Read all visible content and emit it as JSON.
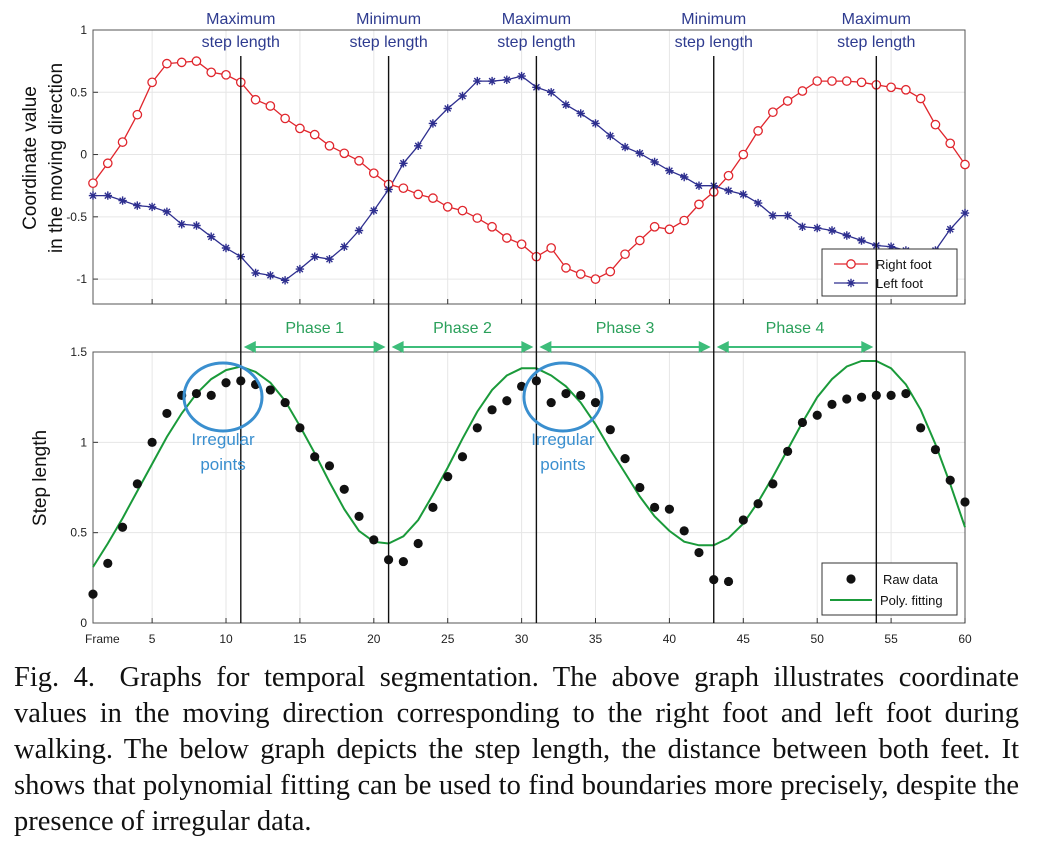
{
  "colors": {
    "right_foot": "#e0262d",
    "left_foot": "#2e2f8f",
    "raw_data": "#111111",
    "poly_fit": "#1a9a3a",
    "phase_arrow": "#3dbd7a",
    "phase_text": "#2aa05a",
    "annotation_text": "#2e3b8f",
    "irregular_circle": "#3a8fcf"
  },
  "chart_data": [
    {
      "type": "line",
      "panel": "top",
      "ylabel_line1": "Coordinate value",
      "ylabel_line2": "in the moving direction",
      "xlim": [
        1,
        60
      ],
      "ylim": [
        -1.2,
        1
      ],
      "yticks": [
        1,
        0.5,
        0,
        -0.5,
        -1
      ],
      "ytick_labels": [
        "1",
        "0.5",
        "0",
        "-0.5",
        "-1"
      ],
      "grid": true,
      "legend_position": "bottom-right",
      "series": [
        {
          "name": "Right foot",
          "marker": "circle",
          "x": [
            1,
            2,
            3,
            4,
            5,
            6,
            7,
            8,
            9,
            10,
            11,
            12,
            13,
            14,
            15,
            16,
            17,
            18,
            19,
            20,
            21,
            22,
            23,
            24,
            25,
            26,
            27,
            28,
            29,
            30,
            31,
            32,
            33,
            34,
            35,
            36,
            37,
            38,
            39,
            40,
            41,
            42,
            43,
            44,
            45,
            46,
            47,
            48,
            49,
            50,
            51,
            52,
            53,
            54,
            55,
            56,
            57,
            58,
            59,
            60
          ],
          "values": [
            -0.23,
            -0.07,
            0.1,
            0.32,
            0.58,
            0.73,
            0.74,
            0.75,
            0.66,
            0.64,
            0.58,
            0.44,
            0.39,
            0.29,
            0.21,
            0.16,
            0.07,
            0.01,
            -0.05,
            -0.15,
            -0.24,
            -0.27,
            -0.32,
            -0.35,
            -0.42,
            -0.45,
            -0.51,
            -0.58,
            -0.67,
            -0.72,
            -0.82,
            -0.75,
            -0.91,
            -0.96,
            -1.0,
            -0.94,
            -0.8,
            -0.69,
            -0.58,
            -0.6,
            -0.53,
            -0.4,
            -0.3,
            -0.17,
            0.0,
            0.19,
            0.34,
            0.43,
            0.51,
            0.59,
            0.59,
            0.59,
            0.58,
            0.56,
            0.54,
            0.52,
            0.45,
            0.24,
            0.09,
            -0.08
          ]
        },
        {
          "name": "Left foot",
          "marker": "star",
          "x": [
            1,
            2,
            3,
            4,
            5,
            6,
            7,
            8,
            9,
            10,
            11,
            12,
            13,
            14,
            15,
            16,
            17,
            18,
            19,
            20,
            21,
            22,
            23,
            24,
            25,
            26,
            27,
            28,
            29,
            30,
            31,
            32,
            33,
            34,
            35,
            36,
            37,
            38,
            39,
            40,
            41,
            42,
            43,
            44,
            45,
            46,
            47,
            48,
            49,
            50,
            51,
            52,
            53,
            54,
            55,
            56,
            57,
            58,
            59,
            60
          ],
          "values": [
            -0.33,
            -0.33,
            -0.37,
            -0.41,
            -0.42,
            -0.46,
            -0.56,
            -0.57,
            -0.66,
            -0.75,
            -0.82,
            -0.95,
            -0.97,
            -1.01,
            -0.92,
            -0.82,
            -0.84,
            -0.74,
            -0.61,
            -0.45,
            -0.28,
            -0.07,
            0.07,
            0.25,
            0.37,
            0.47,
            0.59,
            0.59,
            0.6,
            0.63,
            0.54,
            0.5,
            0.4,
            0.33,
            0.25,
            0.15,
            0.06,
            0.01,
            -0.06,
            -0.13,
            -0.18,
            -0.25,
            -0.25,
            -0.29,
            -0.32,
            -0.39,
            -0.49,
            -0.49,
            -0.58,
            -0.59,
            -0.61,
            -0.65,
            -0.69,
            -0.73,
            -0.74,
            -0.77,
            -0.79,
            -0.77,
            -0.6,
            -0.47
          ]
        }
      ],
      "vertical_markers": [
        {
          "x": 11,
          "label_line1": "Maximum",
          "label_line2": "step length"
        },
        {
          "x": 21,
          "label_line1": "Minimum",
          "label_line2": "step length"
        },
        {
          "x": 31,
          "label_line1": "Maximum",
          "label_line2": "step length"
        },
        {
          "x": 43,
          "label_line1": "Minimum",
          "label_line2": "step length"
        },
        {
          "x": 54,
          "label_line1": "Maximum",
          "label_line2": "step length"
        }
      ]
    },
    {
      "type": "scatter",
      "panel": "bottom",
      "ylabel": "Step length",
      "xlabel": "Frame",
      "xlim": [
        1,
        60
      ],
      "ylim": [
        0,
        1.5
      ],
      "xticks": [
        5,
        10,
        15,
        20,
        25,
        30,
        35,
        40,
        45,
        50,
        55,
        60
      ],
      "yticks": [
        1.5,
        1,
        0.5,
        0
      ],
      "ytick_labels": [
        "1.5",
        "1",
        "0.5",
        "0"
      ],
      "grid": true,
      "legend_position": "bottom-right",
      "series": [
        {
          "name": "Raw data",
          "marker": "dot",
          "x": [
            1,
            2,
            3,
            4,
            5,
            6,
            7,
            8,
            9,
            10,
            11,
            12,
            13,
            14,
            15,
            16,
            17,
            18,
            19,
            20,
            21,
            22,
            23,
            24,
            25,
            26,
            27,
            28,
            29,
            30,
            31,
            32,
            33,
            34,
            35,
            36,
            37,
            38,
            39,
            40,
            41,
            42,
            43,
            44,
            45,
            46,
            47,
            48,
            49,
            50,
            51,
            52,
            53,
            54,
            55,
            56,
            57,
            58,
            59,
            60
          ],
          "values": [
            0.16,
            0.33,
            0.53,
            0.77,
            1.0,
            1.16,
            1.26,
            1.27,
            1.26,
            1.33,
            1.34,
            1.32,
            1.29,
            1.22,
            1.08,
            0.92,
            0.87,
            0.74,
            0.59,
            0.46,
            0.35,
            0.34,
            0.44,
            0.64,
            0.81,
            0.92,
            1.08,
            1.18,
            1.23,
            1.31,
            1.34,
            1.22,
            1.27,
            1.26,
            1.22,
            1.07,
            0.91,
            0.75,
            0.64,
            0.63,
            0.51,
            0.39,
            0.24,
            0.23,
            0.57,
            0.66,
            0.77,
            0.95,
            1.11,
            1.15,
            1.21,
            1.24,
            1.25,
            1.26,
            1.26,
            1.27,
            1.08,
            0.96,
            0.79,
            0.67
          ]
        },
        {
          "name": "Poly. fitting",
          "marker": "line",
          "x": [
            1,
            2,
            3,
            4,
            5,
            6,
            7,
            8,
            9,
            10,
            11,
            12,
            13,
            14,
            15,
            16,
            17,
            18,
            19,
            20,
            21,
            22,
            23,
            24,
            25,
            26,
            27,
            28,
            29,
            30,
            31,
            32,
            33,
            34,
            35,
            36,
            37,
            38,
            39,
            40,
            41,
            42,
            43,
            44,
            45,
            46,
            47,
            48,
            49,
            50,
            51,
            52,
            53,
            54,
            55,
            56,
            57,
            58,
            59,
            60
          ],
          "values": [
            0.31,
            0.44,
            0.58,
            0.73,
            0.88,
            1.03,
            1.16,
            1.27,
            1.35,
            1.4,
            1.42,
            1.39,
            1.33,
            1.23,
            1.09,
            0.94,
            0.78,
            0.63,
            0.51,
            0.45,
            0.44,
            0.48,
            0.57,
            0.71,
            0.86,
            1.02,
            1.17,
            1.29,
            1.37,
            1.41,
            1.41,
            1.37,
            1.31,
            1.22,
            1.1,
            0.96,
            0.83,
            0.7,
            0.59,
            0.51,
            0.45,
            0.43,
            0.43,
            0.47,
            0.55,
            0.67,
            0.81,
            0.96,
            1.11,
            1.25,
            1.35,
            1.42,
            1.45,
            1.45,
            1.41,
            1.32,
            1.18,
            0.99,
            0.77,
            0.53
          ]
        }
      ],
      "phases": [
        {
          "label": "Phase 1",
          "from": 11,
          "to": 21
        },
        {
          "label": "Phase 2",
          "from": 21,
          "to": 31
        },
        {
          "label": "Phase 3",
          "from": 31,
          "to": 43
        },
        {
          "label": "Phase 4",
          "from": 43,
          "to": 54
        }
      ],
      "annotations": [
        {
          "line1": "Irregular",
          "line2": "points",
          "center_frame": 10
        },
        {
          "line1": "Irregular",
          "line2": "points",
          "center_frame": 33
        }
      ]
    }
  ],
  "caption": {
    "figure_number": "Fig. 4.",
    "text": "Graphs for temporal segmentation. The above graph illustrates coordinate values in the moving direction corresponding to the right foot and left foot during walking. The below graph depicts the step length, the distance between both feet. It shows that polynomial fitting can be used to find boundaries more precisely, despite the presence of irregular data."
  }
}
